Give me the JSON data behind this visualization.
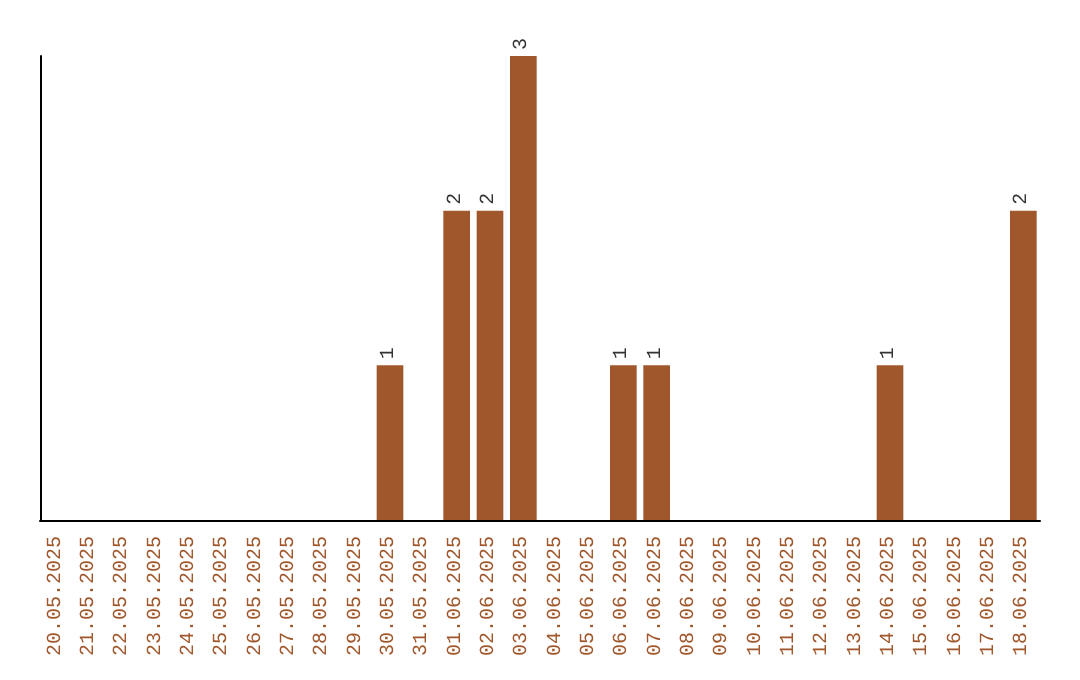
{
  "chart_data": {
    "type": "bar",
    "categories": [
      "20.05.2025",
      "21.05.2025",
      "22.05.2025",
      "23.05.2025",
      "24.05.2025",
      "25.05.2025",
      "26.05.2025",
      "27.05.2025",
      "28.05.2025",
      "29.05.2025",
      "30.05.2025",
      "31.05.2025",
      "01.06.2025",
      "02.06.2025",
      "03.06.2025",
      "04.06.2025",
      "05.06.2025",
      "06.06.2025",
      "07.06.2025",
      "08.06.2025",
      "09.06.2025",
      "10.06.2025",
      "11.06.2025",
      "12.06.2025",
      "13.06.2025",
      "14.06.2025",
      "15.06.2025",
      "16.06.2025",
      "17.06.2025",
      "18.06.2025"
    ],
    "values": [
      0,
      0,
      0,
      0,
      0,
      0,
      0,
      0,
      0,
      0,
      1,
      0,
      2,
      2,
      3,
      0,
      0,
      1,
      1,
      0,
      0,
      0,
      0,
      0,
      0,
      1,
      0,
      0,
      0,
      2
    ],
    "value_labels": [
      null,
      null,
      null,
      null,
      null,
      null,
      null,
      null,
      null,
      null,
      "1",
      null,
      "2",
      "2",
      "3",
      null,
      null,
      "1",
      "1",
      null,
      null,
      null,
      null,
      null,
      null,
      "1",
      null,
      null,
      null,
      "2"
    ],
    "color": "#a0572b"
  }
}
